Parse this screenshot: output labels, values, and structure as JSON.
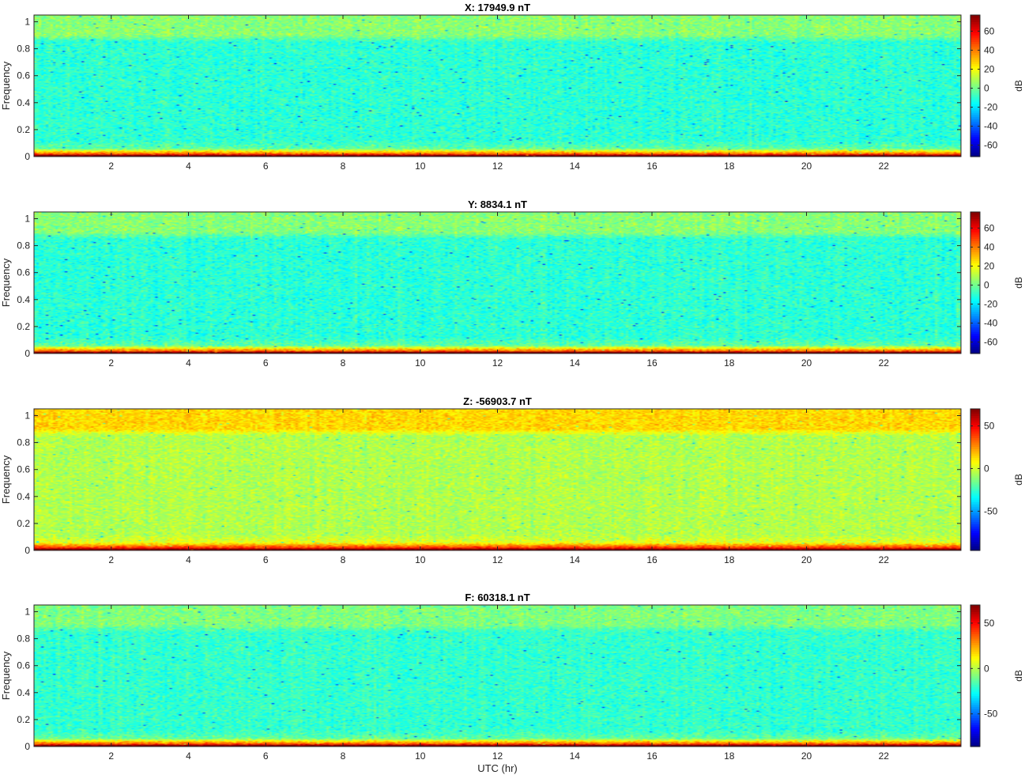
{
  "chart_data": [
    {
      "type": "heatmap",
      "title": "X: 17949.9 nT",
      "ylabel": "Frequency",
      "xlabel": "",
      "x_range": [
        0,
        24
      ],
      "y_range": [
        0,
        1.05
      ],
      "x_ticks": [
        2,
        4,
        6,
        8,
        10,
        12,
        14,
        16,
        18,
        20,
        22
      ],
      "y_ticks": [
        0,
        0.2,
        0.4,
        0.6,
        0.8,
        1
      ],
      "colorbar": {
        "label": "dB",
        "range": [
          -72,
          77
        ],
        "ticks": [
          -60,
          -40,
          -20,
          0,
          20,
          40,
          60
        ]
      },
      "colormap": "jet",
      "levels": {
        "floor_dB": -10,
        "band_high_dB": 4,
        "low_freq_dB": 55,
        "dc_dB": 77
      }
    },
    {
      "type": "heatmap",
      "title": "Y: 8834.1 nT",
      "ylabel": "Frequency",
      "xlabel": "",
      "x_range": [
        0,
        24
      ],
      "y_range": [
        0,
        1.05
      ],
      "x_ticks": [
        2,
        4,
        6,
        8,
        10,
        12,
        14,
        16,
        18,
        20,
        22
      ],
      "y_ticks": [
        0,
        0.2,
        0.4,
        0.6,
        0.8,
        1
      ],
      "colorbar": {
        "label": "dB",
        "range": [
          -72,
          77
        ],
        "ticks": [
          -60,
          -40,
          -20,
          0,
          20,
          40,
          60
        ]
      },
      "colormap": "jet",
      "levels": {
        "floor_dB": -10,
        "band_high_dB": 4,
        "low_freq_dB": 52,
        "dc_dB": 77
      }
    },
    {
      "type": "heatmap",
      "title": "Z: -56903.7 nT",
      "ylabel": "Frequency",
      "xlabel": "",
      "x_range": [
        0,
        24
      ],
      "y_range": [
        0,
        1.05
      ],
      "x_ticks": [
        2,
        4,
        6,
        8,
        10,
        12,
        14,
        16,
        18,
        20,
        22
      ],
      "y_ticks": [
        0,
        0.2,
        0.4,
        0.6,
        0.8,
        1
      ],
      "colorbar": {
        "label": "dB",
        "range": [
          -96,
          70
        ],
        "ticks": [
          -50,
          0,
          50
        ]
      },
      "colormap": "jet",
      "levels": {
        "floor_dB": -5,
        "band_high_dB": 14,
        "low_freq_dB": 50,
        "dc_dB": 70
      }
    },
    {
      "type": "heatmap",
      "title": "F: 60318.1 nT",
      "ylabel": "Frequency",
      "xlabel": "UTC (hr)",
      "x_range": [
        0,
        24
      ],
      "y_range": [
        0,
        1.05
      ],
      "x_ticks": [
        2,
        4,
        6,
        8,
        10,
        12,
        14,
        16,
        18,
        20,
        22
      ],
      "y_ticks": [
        0,
        0.2,
        0.4,
        0.6,
        0.8,
        1
      ],
      "colorbar": {
        "label": "dB",
        "range": [
          -86,
          70
        ],
        "ticks": [
          -50,
          0,
          50
        ]
      },
      "colormap": "jet",
      "levels": {
        "floor_dB": -20,
        "band_high_dB": -8,
        "low_freq_dB": 48,
        "dc_dB": 70
      }
    }
  ]
}
